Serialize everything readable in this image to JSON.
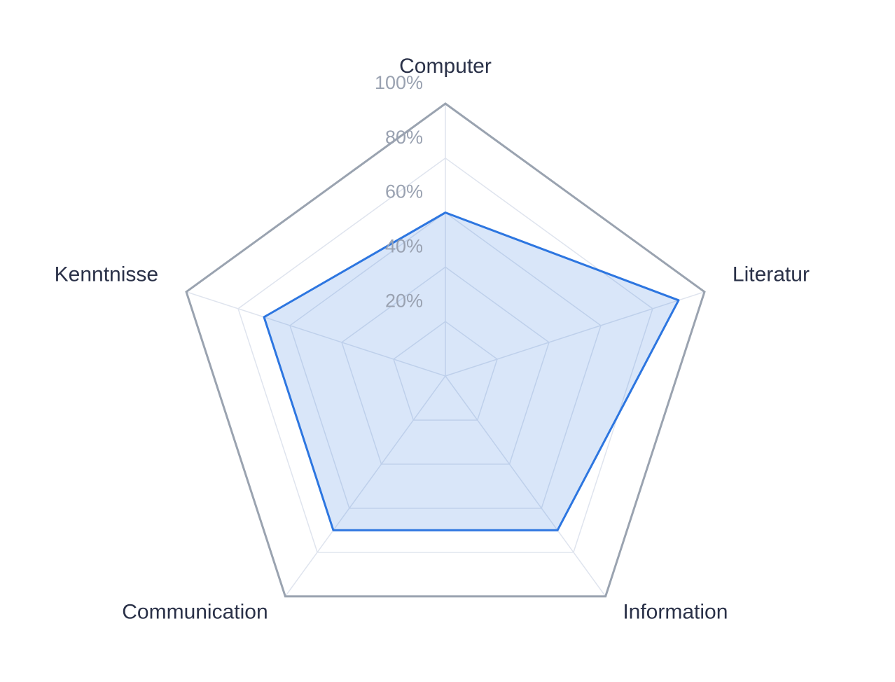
{
  "chart_data": {
    "type": "radar",
    "categories": [
      "Computer",
      "Literatur",
      "Information",
      "Communication",
      "Kenntnisse"
    ],
    "series": [
      {
        "color": "#2d76e0",
        "values": [
          60,
          90,
          70,
          70,
          70
        ]
      }
    ],
    "rlim": [
      0,
      100
    ],
    "rticks": [
      {
        "value": 20,
        "label": "20%"
      },
      {
        "value": 40,
        "label": "40%"
      },
      {
        "value": 60,
        "label": "60%"
      },
      {
        "value": 80,
        "label": "80%"
      },
      {
        "value": 100,
        "label": "100%"
      }
    ],
    "grid": true
  }
}
